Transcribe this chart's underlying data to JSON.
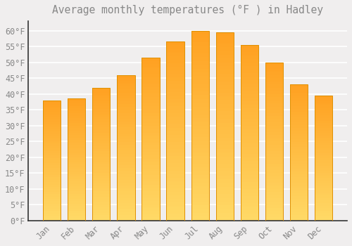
{
  "title": "Average monthly temperatures (°F ) in Hadley",
  "months": [
    "Jan",
    "Feb",
    "Mar",
    "Apr",
    "May",
    "Jun",
    "Jul",
    "Aug",
    "Sep",
    "Oct",
    "Nov",
    "Dec"
  ],
  "values": [
    38,
    38.5,
    42,
    46,
    51.5,
    56.5,
    60,
    59.5,
    55.5,
    50,
    43,
    39.5
  ],
  "bar_color_top": "#FFA500",
  "bar_color_bottom": "#FFD966",
  "bar_edge_color": "#E09000",
  "background_color": "#f0eeee",
  "grid_color": "#ffffff",
  "text_color": "#888888",
  "spine_color": "#333333",
  "ylim": [
    0,
    63
  ],
  "yticks": [
    0,
    5,
    10,
    15,
    20,
    25,
    30,
    35,
    40,
    45,
    50,
    55,
    60
  ],
  "ytick_labels": [
    "0°F",
    "5°F",
    "10°F",
    "15°F",
    "20°F",
    "25°F",
    "30°F",
    "35°F",
    "40°F",
    "45°F",
    "50°F",
    "55°F",
    "60°F"
  ],
  "title_fontsize": 10.5,
  "tick_fontsize": 8.5,
  "font_family": "monospace"
}
